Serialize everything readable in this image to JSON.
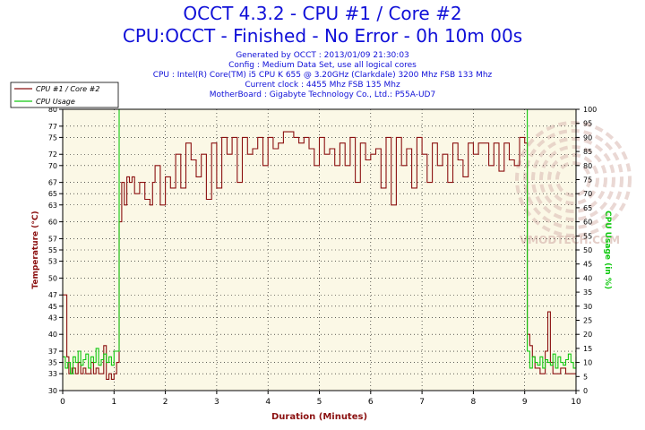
{
  "header": {
    "title": "OCCT 4.3.2 - CPU #1 / Core #2",
    "subtitle": "CPU:OCCT - Finished - No Error - 0h 10m 00s",
    "info_lines": [
      "Generated by OCCT : 2013/01/09 21:30:03",
      "Config : Medium Data Set, use all logical cores",
      "CPU : Intel(R) Core(TM) i5 CPU K 655 @ 3.20GHz (Clarkdale) 3200 Mhz FSB 133 Mhz",
      "Current clock : 4455 Mhz FSB 135 Mhz",
      "MotherBoard : Gigabyte Technology Co., Ltd.: P55A-UD7"
    ]
  },
  "watermark": "VMODTECH.COM",
  "colors": {
    "title": "#1010d8",
    "temperature": "#8b1010",
    "usage": "#10c810",
    "plot_background": "#fbf8e6",
    "grid": "#000000"
  },
  "chart_data": {
    "type": "line",
    "xlabel": "Duration (Minutes)",
    "ylabel_left": "Temperature (°C)",
    "ylabel_right": "CPU Usage (in %)",
    "xlim": [
      0,
      10
    ],
    "ylim_left": [
      30,
      80
    ],
    "ylim_right": [
      0,
      100
    ],
    "x_ticks": [
      "0",
      "1",
      "2",
      "3",
      "4",
      "5",
      "6",
      "7",
      "8",
      "9",
      "10"
    ],
    "left_ticks": [
      30,
      33,
      35,
      37,
      40,
      43,
      45,
      47,
      50,
      53,
      55,
      57,
      60,
      63,
      65,
      67,
      70,
      72,
      75,
      77,
      80
    ],
    "right_ticks": [
      0,
      5,
      10,
      15,
      20,
      25,
      30,
      35,
      40,
      45,
      50,
      55,
      60,
      65,
      70,
      75,
      80,
      85,
      90,
      95,
      100
    ],
    "grid": true,
    "legend_position": "top-left",
    "series": [
      {
        "name": "CPU #1 / Core #2",
        "axis": "left",
        "x": [
          0,
          0.05,
          0.08,
          0.12,
          0.18,
          0.25,
          0.3,
          0.35,
          0.4,
          0.45,
          0.5,
          0.55,
          0.6,
          0.65,
          0.7,
          0.75,
          0.8,
          0.85,
          0.9,
          0.95,
          1.0,
          1.05,
          1.1,
          1.15,
          1.2,
          1.25,
          1.3,
          1.35,
          1.4,
          1.5,
          1.6,
          1.7,
          1.75,
          1.8,
          1.9,
          2.0,
          2.1,
          2.2,
          2.3,
          2.4,
          2.5,
          2.6,
          2.7,
          2.8,
          2.9,
          3.0,
          3.1,
          3.2,
          3.3,
          3.4,
          3.5,
          3.6,
          3.7,
          3.8,
          3.9,
          4.0,
          4.1,
          4.2,
          4.3,
          4.4,
          4.5,
          4.6,
          4.7,
          4.8,
          4.9,
          5.0,
          5.1,
          5.2,
          5.3,
          5.4,
          5.5,
          5.6,
          5.7,
          5.8,
          5.9,
          6.0,
          6.1,
          6.2,
          6.3,
          6.4,
          6.5,
          6.6,
          6.7,
          6.8,
          6.9,
          7.0,
          7.1,
          7.2,
          7.3,
          7.4,
          7.5,
          7.6,
          7.7,
          7.8,
          7.9,
          8.0,
          8.1,
          8.2,
          8.3,
          8.4,
          8.5,
          8.6,
          8.7,
          8.8,
          8.9,
          8.95,
          9.0,
          9.05,
          9.1,
          9.15,
          9.2,
          9.3,
          9.4,
          9.45,
          9.5,
          9.55,
          9.6,
          9.7,
          9.8,
          9.9,
          10.0
        ],
        "values": [
          47,
          47,
          36,
          33,
          34,
          33,
          35,
          33,
          34,
          33,
          33,
          35,
          33,
          34,
          33,
          33,
          38,
          32,
          33,
          32,
          33,
          35,
          60,
          67,
          63,
          68,
          67,
          68,
          65,
          67,
          64,
          63,
          67,
          70,
          63,
          68,
          66,
          72,
          66,
          74,
          71,
          68,
          72,
          64,
          74,
          66,
          75,
          72,
          75,
          67,
          75,
          72,
          73,
          75,
          70,
          75,
          73,
          74,
          76,
          76,
          75,
          74,
          75,
          73,
          70,
          75,
          72,
          73,
          70,
          74,
          70,
          75,
          67,
          74,
          71,
          72,
          73,
          66,
          75,
          63,
          75,
          70,
          73,
          66,
          75,
          72,
          67,
          74,
          70,
          72,
          67,
          74,
          71,
          68,
          74,
          72,
          74,
          74,
          70,
          74,
          69,
          74,
          71,
          70,
          75,
          75,
          74,
          40,
          38,
          36,
          34,
          33,
          37,
          44,
          35,
          33,
          33,
          34,
          33,
          33,
          33
        ]
      },
      {
        "name": "CPU Usage",
        "axis": "right",
        "x": [
          0,
          0.05,
          0.1,
          0.15,
          0.2,
          0.25,
          0.3,
          0.35,
          0.4,
          0.45,
          0.5,
          0.55,
          0.6,
          0.65,
          0.7,
          0.75,
          0.8,
          0.85,
          0.9,
          0.95,
          1.0,
          1.05,
          1.1,
          1.2,
          2,
          3,
          4,
          5,
          6,
          7,
          8,
          8.9,
          9.0,
          9.05,
          9.1,
          9.15,
          9.2,
          9.25,
          9.3,
          9.35,
          9.4,
          9.45,
          9.5,
          9.55,
          9.6,
          9.65,
          9.7,
          9.75,
          9.8,
          9.85,
          9.9,
          9.95,
          10.0
        ],
        "values": [
          12,
          8,
          10,
          6,
          12,
          10,
          14,
          9,
          11,
          13,
          8,
          12,
          10,
          15,
          9,
          11,
          13,
          10,
          12,
          9,
          14,
          14,
          100,
          100,
          100,
          100,
          100,
          100,
          100,
          100,
          100,
          100,
          100,
          14,
          8,
          12,
          10,
          9,
          12,
          8,
          11,
          10,
          9,
          13,
          8,
          12,
          10,
          9,
          11,
          13,
          10,
          8,
          12
        ]
      }
    ]
  }
}
